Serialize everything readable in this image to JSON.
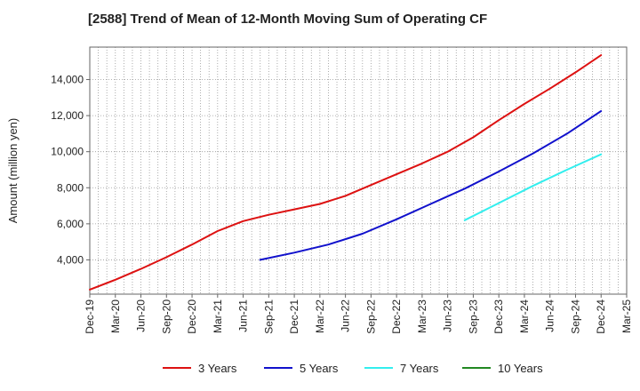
{
  "chart_data": {
    "type": "line",
    "title": "[2588]  Trend of Mean of 12-Month Moving Sum of Operating CF",
    "xlabel": "",
    "ylabel": "Amount (million yen)",
    "ylim": [
      2100,
      15800
    ],
    "yticks": [
      4000,
      6000,
      8000,
      10000,
      12000,
      14000
    ],
    "ytick_labels": [
      "4,000",
      "6,000",
      "8,000",
      "10,000",
      "12,000",
      "14,000"
    ],
    "xlim": [
      0,
      63
    ],
    "xticks": [
      0,
      3,
      6,
      9,
      12,
      15,
      18,
      21,
      24,
      27,
      30,
      33,
      36,
      39,
      42,
      45,
      48,
      51,
      54,
      57,
      60,
      63
    ],
    "xtick_labels": [
      "Dec-19",
      "Mar-20",
      "Jun-20",
      "Sep-20",
      "Dec-20",
      "Mar-21",
      "Jun-21",
      "Sep-21",
      "Dec-21",
      "Mar-22",
      "Jun-22",
      "Sep-22",
      "Dec-22",
      "Mar-23",
      "Jun-23",
      "Sep-23",
      "Dec-23",
      "Mar-24",
      "Jun-24",
      "Sep-24",
      "Dec-24",
      "Mar-25"
    ],
    "grid": true,
    "legend_position": "bottom",
    "series": [
      {
        "name": "3 Years",
        "color": "#dd1111",
        "x": [
          0,
          3,
          6,
          9,
          12,
          15,
          18,
          21,
          24,
          27,
          30,
          33,
          36,
          39,
          42,
          45,
          48,
          51,
          54,
          57,
          60
        ],
        "values": [
          2350,
          2900,
          3500,
          4150,
          4850,
          5600,
          6150,
          6500,
          6800,
          7100,
          7550,
          8150,
          8750,
          9350,
          10000,
          10800,
          11750,
          12650,
          13500,
          14400,
          15350
        ]
      },
      {
        "name": "5 Years",
        "color": "#1111cc",
        "x": [
          20,
          24,
          28,
          32,
          36,
          40,
          44,
          48,
          52,
          56,
          60
        ],
        "values": [
          4000,
          4400,
          4850,
          5450,
          6250,
          7100,
          7950,
          8900,
          9900,
          11000,
          12250
        ]
      },
      {
        "name": "7 Years",
        "color": "#33eeee",
        "x": [
          44,
          48,
          52,
          56,
          60
        ],
        "values": [
          6200,
          7150,
          8100,
          9000,
          9850
        ]
      },
      {
        "name": "10 Years",
        "color": "#228822",
        "x": [],
        "values": []
      }
    ]
  }
}
